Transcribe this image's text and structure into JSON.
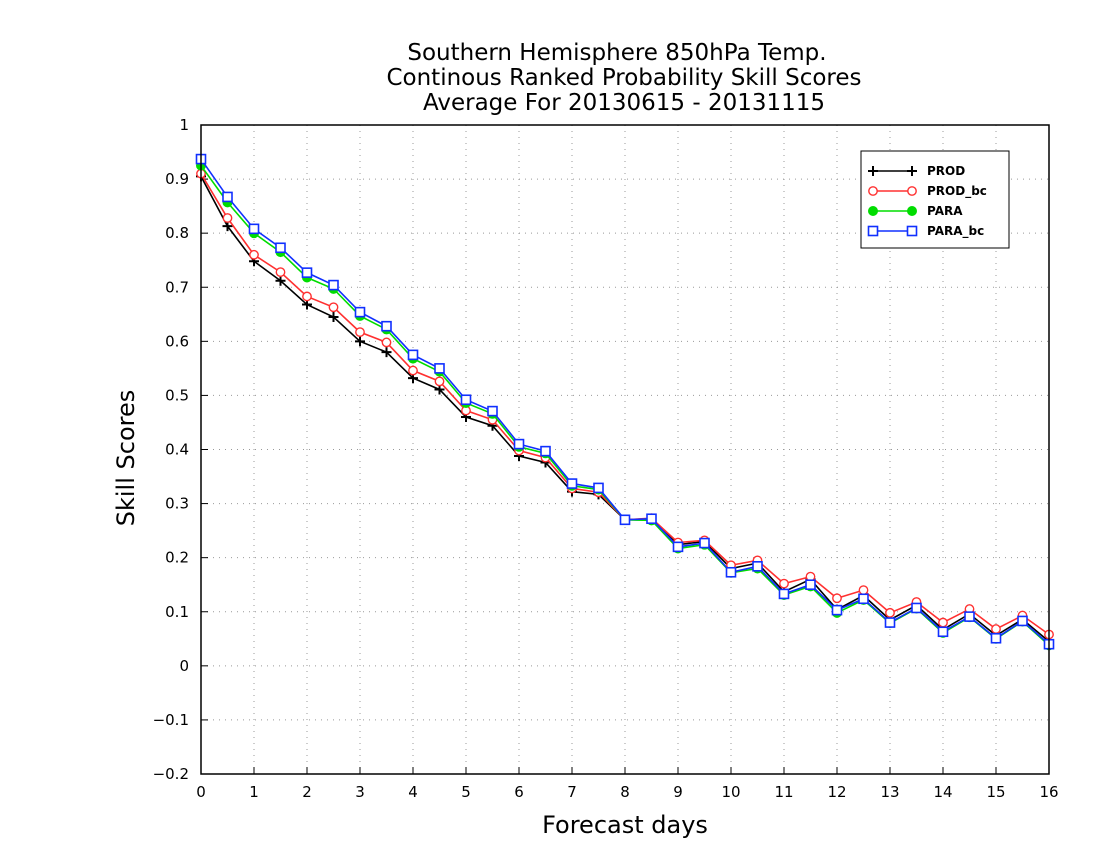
{
  "chart_data": {
    "type": "line",
    "title": [
      "Southern Hemisphere 850hPa Temp.",
      "Continous Ranked Probability Skill Scores",
      "Average For 20130615 - 20131115"
    ],
    "xlabel": "Forecast days",
    "ylabel": "Skill Scores",
    "xlim": [
      0,
      16
    ],
    "ylim": [
      -0.2,
      1
    ],
    "xticks": [
      0,
      1,
      2,
      3,
      4,
      5,
      6,
      7,
      8,
      9,
      10,
      11,
      12,
      13,
      14,
      15,
      16
    ],
    "yticks": [
      -0.2,
      -0.1,
      0,
      0.1,
      0.2,
      0.3,
      0.4,
      0.5,
      0.6,
      0.7,
      0.8,
      0.9,
      1
    ],
    "grid": true,
    "legend_position": "top-right",
    "x": [
      0,
      0.5,
      1,
      1.5,
      2,
      2.5,
      3,
      3.5,
      4,
      4.5,
      5,
      5.5,
      6,
      6.5,
      7,
      7.5,
      8,
      8.5,
      9,
      9.5,
      10,
      10.5,
      11,
      11.5,
      12,
      12.5,
      13,
      13.5,
      14,
      14.5,
      15,
      15.5,
      16
    ],
    "series": [
      {
        "name": "PROD",
        "color": "#000000",
        "marker": "plus",
        "values": [
          0.905,
          0.813,
          0.748,
          0.712,
          0.668,
          0.645,
          0.6,
          0.58,
          0.532,
          0.511,
          0.46,
          0.444,
          0.388,
          0.376,
          0.322,
          0.317,
          0.27,
          0.272,
          0.224,
          0.23,
          0.18,
          0.19,
          0.137,
          0.16,
          0.104,
          0.13,
          0.085,
          0.112,
          0.067,
          0.096,
          0.056,
          0.086,
          0.045
        ]
      },
      {
        "name": "PROD_bc",
        "color": "#ff3030",
        "marker": "circle-open",
        "values": [
          0.91,
          0.828,
          0.76,
          0.728,
          0.683,
          0.663,
          0.617,
          0.598,
          0.546,
          0.526,
          0.472,
          0.455,
          0.398,
          0.385,
          0.328,
          0.321,
          0.27,
          0.273,
          0.228,
          0.232,
          0.186,
          0.195,
          0.152,
          0.165,
          0.125,
          0.14,
          0.098,
          0.118,
          0.08,
          0.105,
          0.068,
          0.093,
          0.058
        ]
      },
      {
        "name": "PARA",
        "color": "#00dd00",
        "marker": "circle-filled",
        "values": [
          0.925,
          0.857,
          0.8,
          0.765,
          0.718,
          0.697,
          0.647,
          0.622,
          0.568,
          0.544,
          0.486,
          0.466,
          0.405,
          0.393,
          0.333,
          0.326,
          0.27,
          0.269,
          0.217,
          0.224,
          0.172,
          0.18,
          0.131,
          0.147,
          0.098,
          0.122,
          0.079,
          0.106,
          0.061,
          0.09,
          0.05,
          0.082,
          0.038
        ]
      },
      {
        "name": "PARA_bc",
        "color": "#1030ff",
        "marker": "square-open",
        "values": [
          0.937,
          0.867,
          0.808,
          0.773,
          0.727,
          0.704,
          0.654,
          0.628,
          0.575,
          0.55,
          0.492,
          0.471,
          0.41,
          0.397,
          0.337,
          0.329,
          0.27,
          0.272,
          0.22,
          0.227,
          0.173,
          0.184,
          0.133,
          0.15,
          0.103,
          0.124,
          0.08,
          0.107,
          0.063,
          0.091,
          0.051,
          0.083,
          0.04
        ]
      }
    ]
  }
}
